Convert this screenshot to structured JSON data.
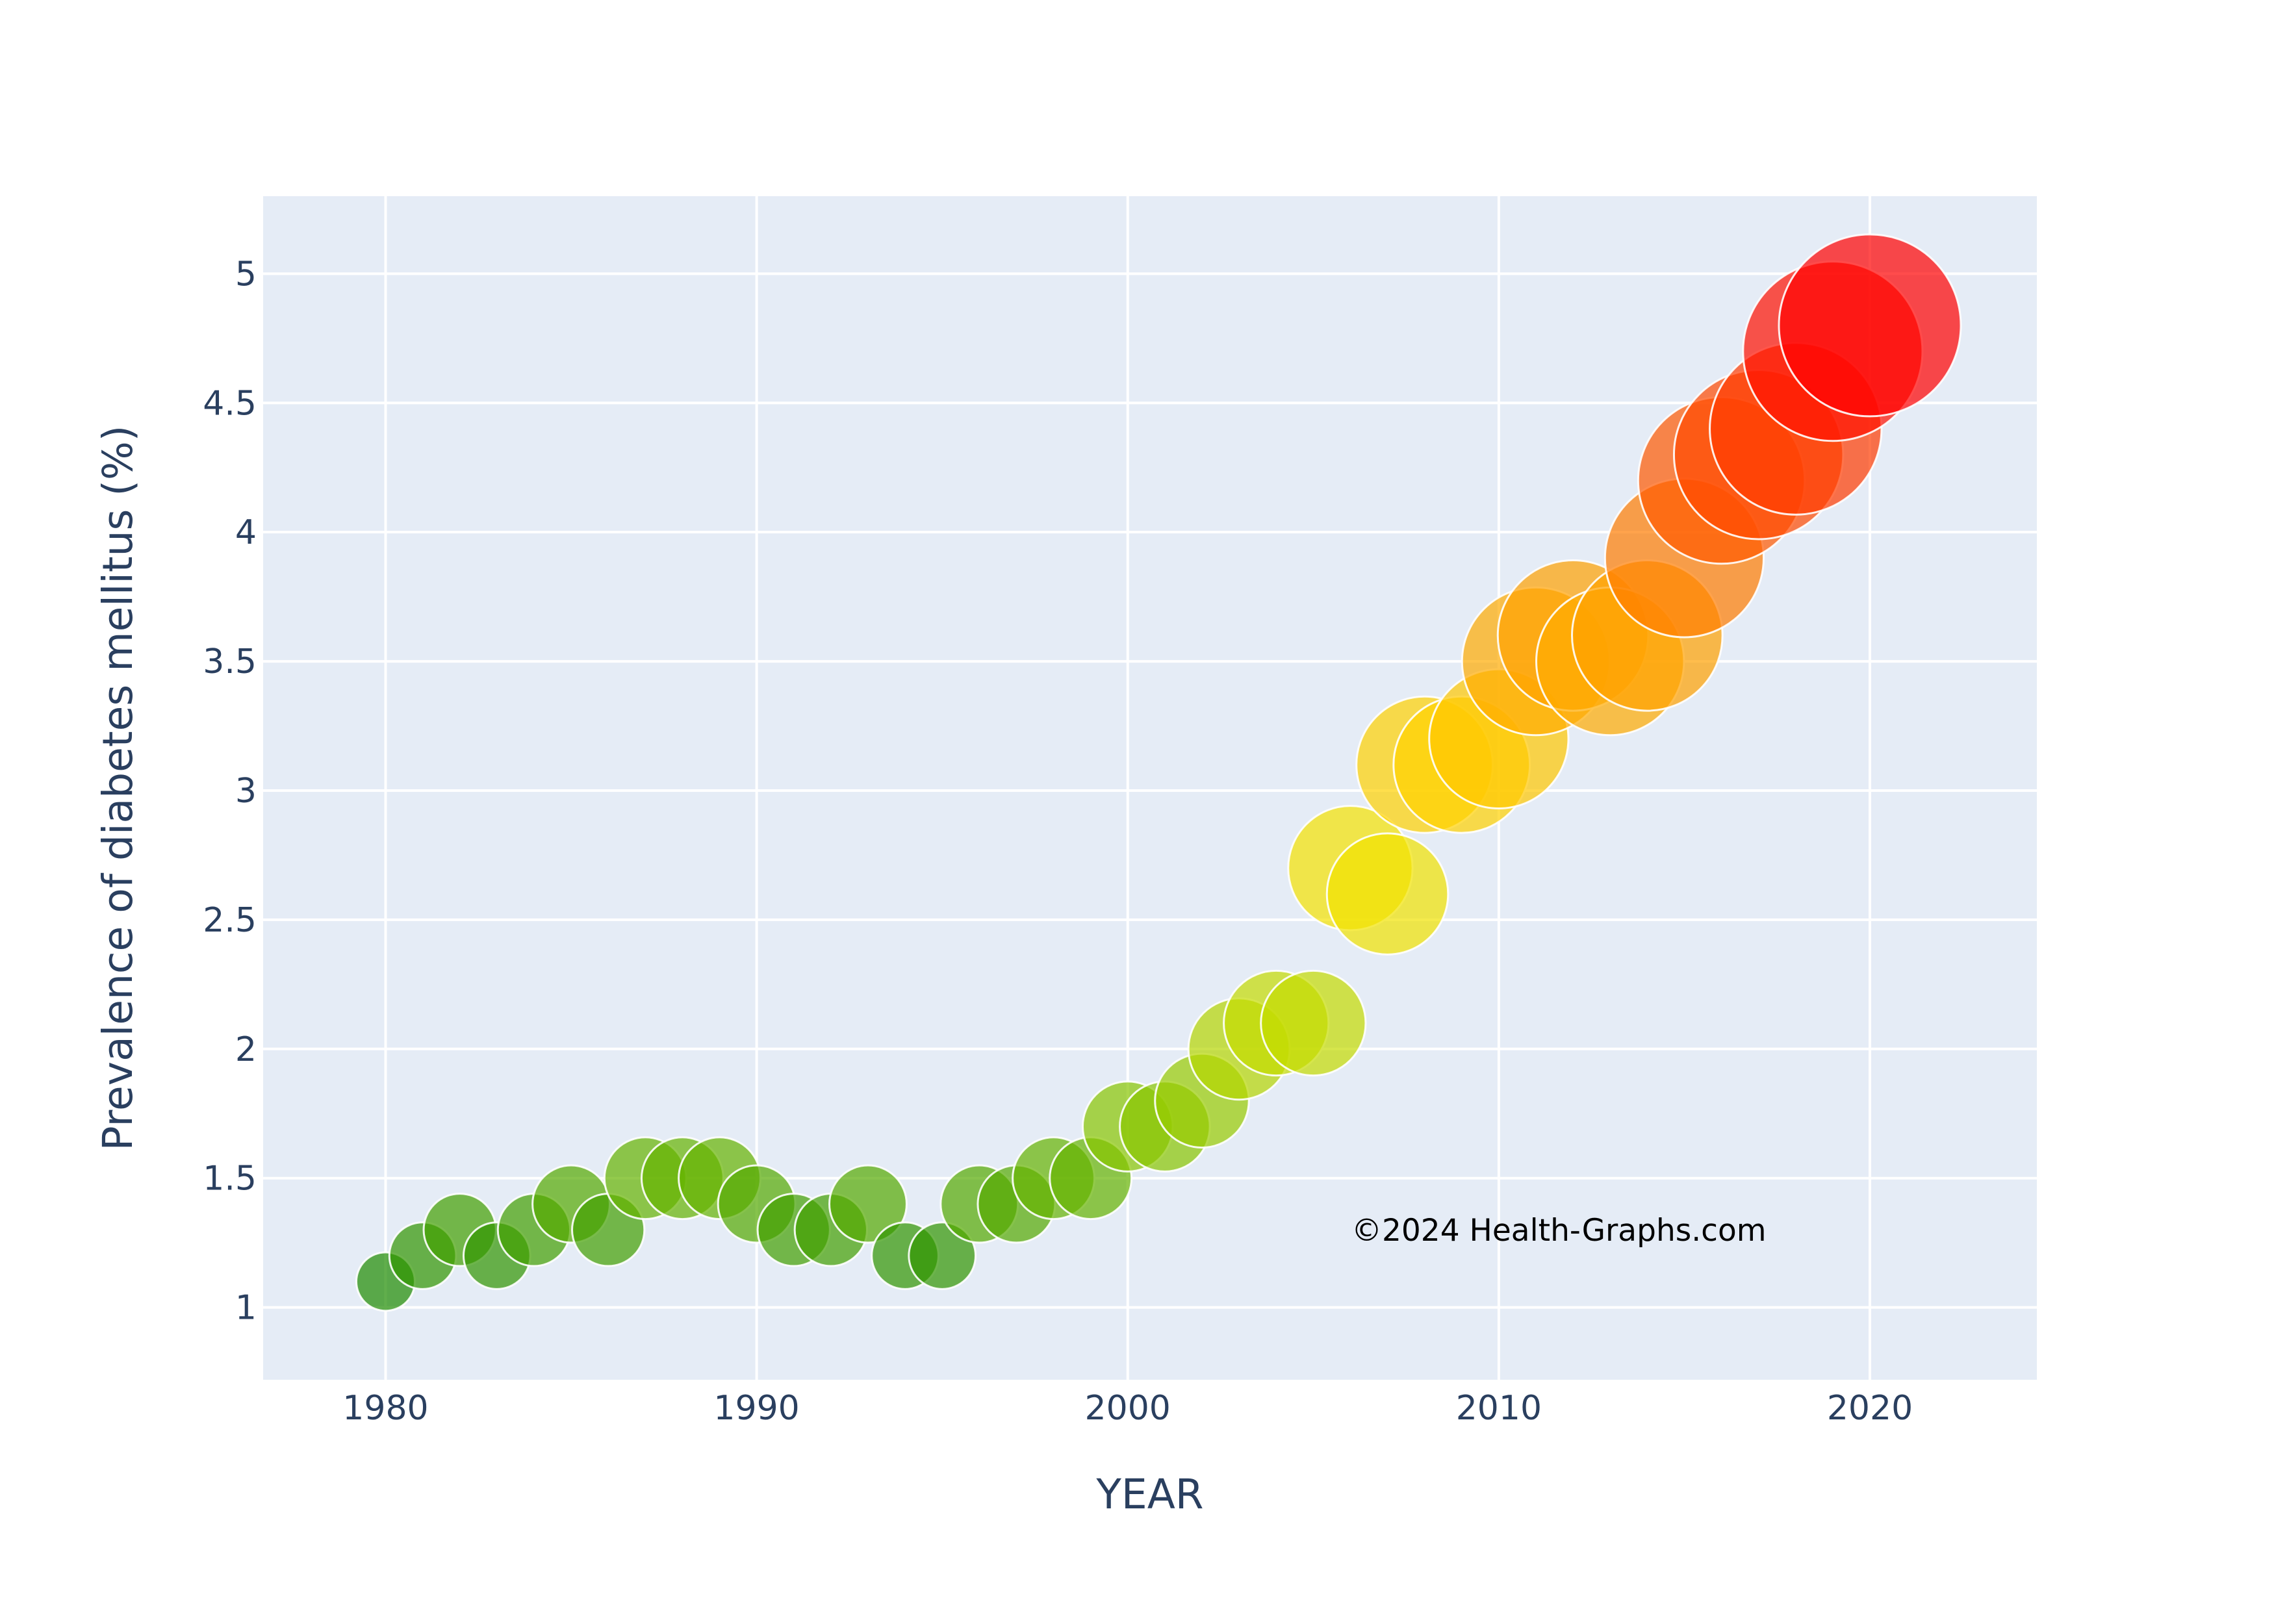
{
  "chart_data": {
    "type": "scatter",
    "title": "",
    "xlabel": "YEAR",
    "ylabel": "Prevalence of diabetes mellitus (%)",
    "xlim": [
      1976.7,
      2024.5
    ],
    "ylim": [
      0.72,
      5.3
    ],
    "xticks": [
      1980,
      1990,
      2000,
      2010,
      2020
    ],
    "yticks": [
      1,
      1.5,
      2,
      2.5,
      3,
      3.5,
      4,
      4.5,
      5
    ],
    "grid": true,
    "legend": "none",
    "colors": {
      "plot_bg": "#e5ecf6",
      "grid": "#ffffff",
      "text": "#2a3f5f"
    },
    "colorscale": [
      "#1e8c00",
      "#8cc800",
      "#e6e600",
      "#ffe000",
      "#ffa500",
      "#ff5a00",
      "#ff0000"
    ],
    "x": [
      1980,
      1981,
      1982,
      1983,
      1984,
      1985,
      1986,
      1987,
      1988,
      1989,
      1990,
      1991,
      1992,
      1993,
      1994,
      1995,
      1996,
      1997,
      1998,
      1999,
      2000,
      2001,
      2002,
      2003,
      2004,
      2005,
      2006,
      2007,
      2008,
      2009,
      2010,
      2011,
      2012,
      2013,
      2014,
      2015,
      2016,
      2017,
      2018,
      2019,
      2020
    ],
    "y": [
      1.1,
      1.2,
      1.3,
      1.2,
      1.3,
      1.4,
      1.3,
      1.5,
      1.5,
      1.5,
      1.4,
      1.3,
      1.3,
      1.4,
      1.2,
      1.2,
      1.4,
      1.4,
      1.5,
      1.5,
      1.7,
      1.7,
      1.8,
      2.0,
      2.1,
      2.1,
      2.7,
      2.6,
      3.1,
      3.1,
      3.2,
      3.5,
      3.6,
      3.5,
      3.6,
      3.9,
      4.2,
      4.3,
      4.4,
      4.7,
      4.8
    ],
    "annotation": "©2024 Health-Graphs.com"
  }
}
